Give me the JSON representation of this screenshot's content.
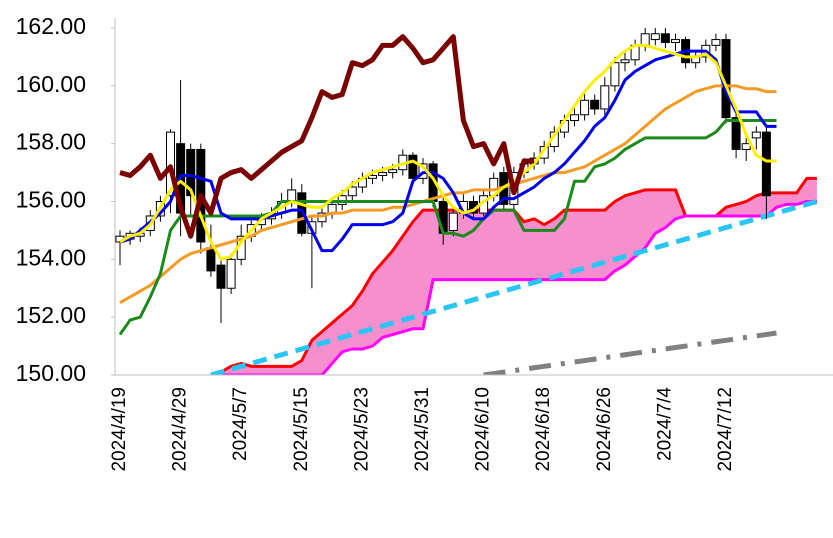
{
  "chart_data": {
    "type": "candlestick",
    "categories": [
      "2024/4/19",
      null,
      null,
      null,
      null,
      null,
      "2024/4/29",
      null,
      null,
      null,
      null,
      null,
      "2024/5/7",
      null,
      null,
      null,
      null,
      null,
      "2024/5/15",
      null,
      null,
      null,
      null,
      null,
      "2024/5/23",
      null,
      null,
      null,
      null,
      null,
      "2024/5/31",
      null,
      null,
      null,
      null,
      null,
      "2024/6/10",
      null,
      null,
      null,
      null,
      null,
      "2024/6/18",
      null,
      null,
      null,
      null,
      null,
      "2024/6/26",
      null,
      null,
      null,
      null,
      null,
      "2024/7/4",
      null,
      null,
      null,
      null,
      null,
      "2024/7/12",
      null,
      null,
      null,
      null,
      null,
      null,
      null,
      null,
      null
    ],
    "ylim": [
      150,
      162
    ],
    "yticks": [
      {
        "value": 150,
        "label": "150.00"
      },
      {
        "value": 152,
        "label": "152.00"
      },
      {
        "value": 154,
        "label": "154.00"
      },
      {
        "value": 156,
        "label": "156.00"
      },
      {
        "value": 158,
        "label": "158.00"
      },
      {
        "value": 160,
        "label": "160.00"
      },
      {
        "value": 162,
        "label": "162.00"
      }
    ],
    "ohlc": {
      "up_color": "#ffffff",
      "down_color": "#000000",
      "edge_color": "#000000",
      "open": [
        154.6,
        154.7,
        154.8,
        155.0,
        155.5,
        156.2,
        158.0,
        157.8,
        157.8,
        154.4,
        153.8,
        153.0,
        154.0,
        154.8,
        155.2,
        155.4,
        155.6,
        156.0,
        156.3,
        154.9,
        155.3,
        155.6,
        155.9,
        156.2,
        156.5,
        156.8,
        156.9,
        157.0,
        157.1,
        157.6,
        156.8,
        157.3,
        156.0,
        155.0,
        155.6,
        156.0,
        155.6,
        156.2,
        157.0,
        155.9,
        157.0,
        157.3,
        157.5,
        157.9,
        158.4,
        158.8,
        159.0,
        159.5,
        159.2,
        160.0,
        160.8,
        160.9,
        161.4,
        161.6,
        161.8,
        161.5,
        161.6,
        160.8,
        161.0,
        161.4,
        161.6,
        158.9,
        157.8,
        158.2,
        158.4
      ],
      "high": [
        155.0,
        155.0,
        155.1,
        155.7,
        156.2,
        158.5,
        160.2,
        158.0,
        158.0,
        155.2,
        154.0,
        154.2,
        155.2,
        155.4,
        155.6,
        155.8,
        156.3,
        156.8,
        156.6,
        155.5,
        155.8,
        156.1,
        156.4,
        156.7,
        157.0,
        157.1,
        157.2,
        157.3,
        157.8,
        157.7,
        157.5,
        157.4,
        156.2,
        155.8,
        156.3,
        156.2,
        156.4,
        157.0,
        157.2,
        157.2,
        157.5,
        157.7,
        158.1,
        158.6,
        159.0,
        159.3,
        159.8,
        159.7,
        160.3,
        161.0,
        161.2,
        161.6,
        162.0,
        162.0,
        162.0,
        161.8,
        161.7,
        161.2,
        161.6,
        161.8,
        161.8,
        159.1,
        158.3,
        158.6,
        158.6
      ],
      "low": [
        153.8,
        154.5,
        154.6,
        154.8,
        155.3,
        155.6,
        154.8,
        155.5,
        154.2,
        153.4,
        151.8,
        152.8,
        153.8,
        154.6,
        155.0,
        155.2,
        155.4,
        155.8,
        154.8,
        153.0,
        155.1,
        155.4,
        155.7,
        156.0,
        156.3,
        156.6,
        156.7,
        156.8,
        156.9,
        156.6,
        156.6,
        155.8,
        154.5,
        154.8,
        155.4,
        155.4,
        155.5,
        156.0,
        155.7,
        155.7,
        156.8,
        157.1,
        157.3,
        157.7,
        158.2,
        158.6,
        158.8,
        159.0,
        159.0,
        159.8,
        160.5,
        160.7,
        161.2,
        161.4,
        161.3,
        161.2,
        160.6,
        160.6,
        160.8,
        161.2,
        158.7,
        157.5,
        157.4,
        157.8,
        155.4
      ],
      "close": [
        154.8,
        154.9,
        154.9,
        155.5,
        156.0,
        158.4,
        155.6,
        156.2,
        154.6,
        153.6,
        153.0,
        154.0,
        154.8,
        155.2,
        155.4,
        155.6,
        156.0,
        156.4,
        154.9,
        155.3,
        155.6,
        155.9,
        156.2,
        156.5,
        156.8,
        156.9,
        157.0,
        157.1,
        157.6,
        156.8,
        157.3,
        156.0,
        154.9,
        155.6,
        156.0,
        155.6,
        156.2,
        156.8,
        155.9,
        157.0,
        157.3,
        157.5,
        157.9,
        158.4,
        158.8,
        159.0,
        159.5,
        159.2,
        160.0,
        160.8,
        160.9,
        161.4,
        161.8,
        161.8,
        161.5,
        161.6,
        160.8,
        161.0,
        161.4,
        161.6,
        158.9,
        157.8,
        158.0,
        158.4,
        156.2
      ]
    },
    "cloud": {
      "color": "#f78fce",
      "span_a": {
        "color": "#ff0000",
        "line_width": 3,
        "values": [
          null,
          null,
          null,
          null,
          null,
          null,
          null,
          null,
          null,
          null,
          150.1,
          150.3,
          150.4,
          150.3,
          150.3,
          150.3,
          150.3,
          150.3,
          150.5,
          151.2,
          151.5,
          151.8,
          152.1,
          152.4,
          152.9,
          153.5,
          153.9,
          154.3,
          154.8,
          155.3,
          155.7,
          155.7,
          155.7,
          155.7,
          155.7,
          155.7,
          155.7,
          155.7,
          155.7,
          155.7,
          155.3,
          155.4,
          155.2,
          155.4,
          155.7,
          155.7,
          155.7,
          155.7,
          155.7,
          156.0,
          156.2,
          156.3,
          156.4,
          156.4,
          156.4,
          156.4,
          155.5,
          155.5,
          155.5,
          155.5,
          155.8,
          155.9,
          156.0,
          156.2,
          156.3,
          156.3,
          156.3,
          156.3,
          156.8,
          156.8
        ]
      },
      "span_b": {
        "color": "#ff00ff",
        "line_width": 3,
        "values": [
          null,
          null,
          null,
          null,
          null,
          null,
          null,
          null,
          null,
          null,
          150.0,
          150.0,
          150.0,
          150.0,
          150.0,
          150.0,
          150.0,
          150.0,
          150.0,
          150.0,
          150.0,
          150.4,
          150.8,
          150.9,
          150.9,
          151.0,
          151.3,
          151.4,
          151.5,
          151.6,
          151.6,
          153.3,
          153.3,
          153.3,
          153.3,
          153.3,
          153.3,
          153.3,
          153.3,
          153.3,
          153.3,
          153.3,
          153.3,
          153.3,
          153.3,
          153.3,
          153.3,
          153.3,
          153.3,
          153.6,
          153.8,
          154.1,
          154.4,
          154.9,
          155.1,
          155.4,
          155.5,
          155.5,
          155.5,
          155.5,
          155.5,
          155.5,
          155.5,
          155.5,
          155.5,
          155.8,
          155.9,
          155.9,
          156.0,
          156.0
        ]
      }
    },
    "series": [
      {
        "color": "#29c5f6",
        "line_width": 5,
        "dash": "dashed",
        "values": [
          null,
          null,
          null,
          null,
          null,
          null,
          null,
          null,
          null,
          150.0,
          150.1,
          150.2,
          150.3,
          150.4,
          150.5,
          150.6,
          150.7,
          150.8,
          150.9,
          151.0,
          151.1,
          151.2,
          151.3,
          151.4,
          151.5,
          151.6,
          151.7,
          151.8,
          151.9,
          152.0,
          152.1,
          152.2,
          152.3,
          152.4,
          152.5,
          152.6,
          152.7,
          152.8,
          152.9,
          153.0,
          153.1,
          153.2,
          153.3,
          153.4,
          153.5,
          153.6,
          153.7,
          153.8,
          153.9,
          154.0,
          154.1,
          154.2,
          154.3,
          154.4,
          154.5,
          154.6,
          154.7,
          154.8,
          154.9,
          155.0,
          155.1,
          155.2,
          155.3,
          155.4,
          155.5,
          155.6,
          155.7,
          155.8,
          155.9,
          156.0
        ]
      },
      {
        "color": "#808080",
        "line_width": 5,
        "dash": "dash-dot",
        "values": [
          null,
          null,
          null,
          null,
          null,
          null,
          null,
          null,
          null,
          null,
          null,
          null,
          null,
          null,
          null,
          null,
          null,
          null,
          null,
          null,
          null,
          null,
          null,
          null,
          null,
          null,
          null,
          null,
          null,
          null,
          null,
          null,
          null,
          null,
          null,
          null,
          150.0,
          150.05,
          150.1,
          150.15,
          150.2,
          150.25,
          150.3,
          150.35,
          150.4,
          150.45,
          150.5,
          150.55,
          150.6,
          150.65,
          150.7,
          150.75,
          150.8,
          150.85,
          150.9,
          150.95,
          151.0,
          151.05,
          151.1,
          151.15,
          151.2,
          151.25,
          151.3,
          151.35,
          151.4,
          151.45,
          null,
          null,
          null,
          null
        ]
      },
      {
        "color": "#f59a23",
        "line_width": 3,
        "dash": "solid",
        "values": [
          152.5,
          152.7,
          152.9,
          153.1,
          153.4,
          153.7,
          154.0,
          154.2,
          154.3,
          154.4,
          154.5,
          154.6,
          154.7,
          154.8,
          155.0,
          155.1,
          155.2,
          155.3,
          155.4,
          155.5,
          155.5,
          155.6,
          155.6,
          155.7,
          155.7,
          155.7,
          155.7,
          155.8,
          155.8,
          155.9,
          156.0,
          156.1,
          156.2,
          156.3,
          156.3,
          156.4,
          156.4,
          156.4,
          156.5,
          156.6,
          156.7,
          156.8,
          156.9,
          157.0,
          157.0,
          157.1,
          157.2,
          157.4,
          157.6,
          157.8,
          158.0,
          158.3,
          158.6,
          158.9,
          159.2,
          159.4,
          159.6,
          159.8,
          159.9,
          160.0,
          160.0,
          160.0,
          159.9,
          159.9,
          159.8,
          159.8,
          null,
          null,
          null,
          null
        ]
      },
      {
        "color": "#1a8a1a",
        "line_width": 3,
        "dash": "solid",
        "values": [
          151.4,
          151.9,
          152.0,
          152.7,
          153.5,
          155.0,
          155.5,
          155.5,
          155.5,
          155.5,
          155.5,
          155.5,
          155.5,
          155.5,
          155.5,
          155.6,
          156.0,
          156.0,
          156.0,
          156.0,
          156.0,
          156.0,
          156.0,
          156.0,
          156.0,
          156.0,
          156.0,
          156.0,
          156.0,
          156.0,
          156.0,
          156.0,
          154.9,
          154.9,
          154.8,
          155.0,
          155.4,
          155.7,
          155.7,
          155.7,
          155.0,
          155.0,
          155.0,
          155.0,
          155.4,
          156.7,
          156.7,
          157.2,
          157.3,
          157.5,
          157.8,
          158.0,
          158.2,
          158.2,
          158.2,
          158.2,
          158.2,
          158.2,
          158.2,
          158.4,
          158.8,
          158.8,
          158.8,
          158.8,
          158.8,
          158.8,
          null,
          null,
          null,
          null
        ]
      },
      {
        "color": "#0000ee",
        "line_width": 3,
        "dash": "solid",
        "values": [
          154.6,
          154.7,
          155.0,
          155.3,
          155.6,
          156.0,
          156.9,
          156.9,
          156.8,
          156.7,
          155.6,
          155.4,
          155.4,
          155.4,
          155.4,
          155.5,
          155.6,
          155.7,
          155.7,
          155.0,
          154.3,
          154.3,
          154.7,
          155.2,
          155.2,
          155.2,
          155.2,
          155.3,
          155.6,
          156.7,
          157.0,
          157.0,
          156.8,
          156.3,
          155.6,
          155.4,
          155.4,
          155.8,
          156.1,
          156.1,
          156.3,
          156.5,
          156.8,
          157.0,
          157.3,
          157.7,
          158.1,
          158.6,
          158.9,
          159.5,
          160.2,
          160.5,
          160.7,
          160.9,
          161.0,
          161.1,
          161.2,
          161.2,
          161.2,
          160.9,
          159.8,
          159.1,
          159.1,
          159.1,
          158.6,
          158.6,
          null,
          null,
          null,
          null
        ]
      },
      {
        "color": "#ffee00",
        "line_width": 3,
        "dash": "solid",
        "values": [
          154.6,
          154.8,
          154.9,
          155.2,
          155.8,
          156.4,
          156.7,
          156.4,
          155.5,
          154.6,
          154.0,
          154.1,
          154.6,
          155.0,
          155.4,
          155.6,
          155.8,
          156.0,
          155.9,
          155.8,
          155.8,
          156.1,
          156.3,
          156.6,
          156.8,
          157.0,
          157.1,
          157.2,
          157.3,
          157.4,
          157.2,
          156.8,
          156.2,
          155.8,
          155.6,
          155.7,
          156.0,
          156.2,
          156.5,
          156.7,
          157.0,
          157.3,
          157.8,
          158.3,
          158.8,
          159.3,
          159.8,
          160.2,
          160.5,
          160.9,
          161.2,
          161.4,
          161.4,
          161.3,
          161.2,
          161.1,
          161.0,
          161.0,
          161.1,
          160.8,
          160.0,
          159.2,
          158.3,
          157.6,
          157.4,
          157.4,
          null,
          null,
          null,
          null
        ]
      },
      {
        "color": "#7b0000",
        "line_width": 5,
        "dash": "solid",
        "values": [
          157.0,
          156.9,
          157.2,
          157.6,
          156.8,
          157.2,
          155.8,
          154.8,
          156.2,
          155.6,
          156.8,
          157.0,
          157.1,
          156.8,
          157.1,
          157.4,
          157.7,
          157.9,
          158.1,
          158.9,
          159.8,
          159.6,
          159.7,
          160.8,
          160.7,
          160.9,
          161.4,
          161.4,
          161.7,
          161.3,
          160.8,
          160.9,
          161.3,
          161.7,
          158.8,
          157.9,
          158.0,
          157.3,
          158.0,
          156.3,
          157.4,
          157.4,
          null,
          null,
          null,
          null,
          null,
          null,
          null,
          null,
          null,
          null,
          null,
          null,
          null,
          null,
          null,
          null,
          null,
          null,
          null,
          null,
          null,
          null,
          null,
          null,
          null,
          null,
          null,
          null
        ]
      }
    ]
  }
}
